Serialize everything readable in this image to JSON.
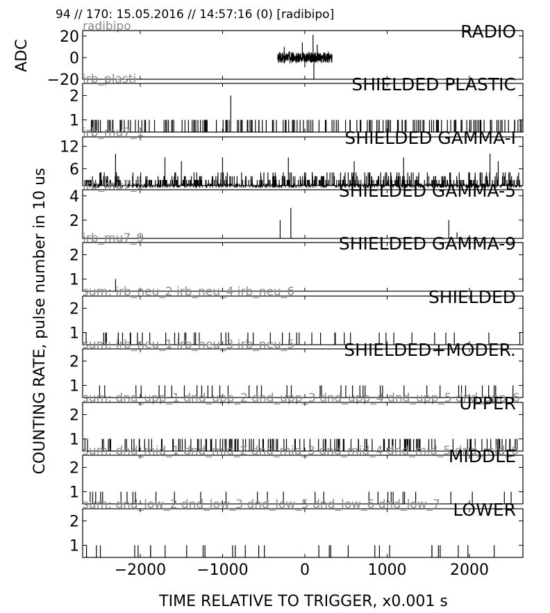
{
  "header": "94 // 170:   15.05.2016 // 14:57:16 (0)  [radibipo]",
  "ylabel_adc": "ADC",
  "ylabel_rate": "COUNTING RATE,   pulse number in 10 us",
  "xlabel": "TIME RELATIVE TO TRIGGER,   x0.001 s",
  "chart_data": {
    "type": "line",
    "x_range": [
      -2700,
      2650
    ],
    "x_ticks": [
      -2000,
      -1000,
      0,
      1000,
      2000
    ],
    "x_tick_labels": [
      "−2000",
      "−1000",
      "0",
      "1000",
      "2000"
    ],
    "panels": [
      {
        "title": "RADIO",
        "channel_label": "radibipo",
        "kind": "waveform",
        "ylim": [
          -20,
          25
        ],
        "y_ticks": [
          -20,
          0,
          20
        ],
        "y_tick_labels": [
          "−20",
          "0",
          "20"
        ],
        "waveform": {
          "x_start": -330,
          "x_end": 330,
          "amplitude": 6,
          "spikes": [
            [
              -250,
              10
            ],
            [
              -30,
              14
            ],
            [
              0,
              -9
            ],
            [
              100,
              21
            ],
            [
              110,
              -20
            ],
            [
              150,
              12
            ]
          ]
        }
      },
      {
        "title": "SHIELDED PLASTIC",
        "channel_label": "irb_plasti",
        "kind": "pulses",
        "ylim": [
          0.5,
          2.5
        ],
        "y_ticks": [
          1,
          2
        ],
        "y_tick_labels": [
          "1",
          "2"
        ],
        "count": 170,
        "seed": 11,
        "max": 1,
        "value_weights": [
          1
        ],
        "spikes": [
          [
            -900,
            2
          ]
        ]
      },
      {
        "title": "SHIELDED GAMMA-I",
        "channel_label": "irb_mu7_1",
        "kind": "pulses",
        "ylim": [
          1.5,
          14.5
        ],
        "y_ticks": [
          6,
          12
        ],
        "y_tick_labels": [
          "6",
          "12"
        ],
        "count": 950,
        "seed": 23,
        "max": 6,
        "value_weights": [
          0.3,
          0.3,
          0.2,
          0.12,
          0.08
        ],
        "spikes": [
          [
            -2300,
            10
          ],
          [
            -1700,
            9
          ],
          [
            -1500,
            8
          ],
          [
            -1000,
            9
          ],
          [
            -200,
            9
          ],
          [
            600,
            8
          ],
          [
            1200,
            9
          ],
          [
            2250,
            10
          ],
          [
            2350,
            8
          ]
        ]
      },
      {
        "title": "SHIELDED GAMMA-5",
        "channel_label": "irb_mu7_5",
        "kind": "pulses",
        "ylim": [
          0.5,
          4.5
        ],
        "y_ticks": [
          2,
          4
        ],
        "y_tick_labels": [
          "2",
          "4"
        ],
        "count": 0,
        "seed": 31,
        "max": 1,
        "value_weights": [
          1
        ],
        "spikes": [
          [
            -300,
            2
          ],
          [
            -170,
            3
          ],
          [
            1750,
            2
          ],
          [
            1850,
            1
          ]
        ]
      },
      {
        "title": "SHIELDED GAMMA-9",
        "channel_label": "irb_mu7_9",
        "kind": "pulses",
        "ylim": [
          0.5,
          2.5
        ],
        "y_ticks": [
          1,
          2
        ],
        "y_tick_labels": [
          "1",
          "2"
        ],
        "count": 0,
        "seed": 41,
        "max": 1,
        "value_weights": [
          1
        ],
        "spikes": [
          [
            -2300,
            1
          ]
        ]
      },
      {
        "title": "SHIELDED",
        "channel_label": "sum: irb_neu_2 irb_neu_4 irb_neu_6",
        "kind": "pulses",
        "ylim": [
          0.5,
          2.5
        ],
        "y_ticks": [
          1,
          2
        ],
        "y_tick_labels": [
          "1",
          "2"
        ],
        "count": 45,
        "seed": 53,
        "max": 1,
        "value_weights": [
          1
        ],
        "spikes": []
      },
      {
        "title": "SHIELDED+MODER.",
        "channel_label": "sum: irb_neu_1 irb_neu_3 irb_neu_5",
        "kind": "pulses",
        "ylim": [
          0.5,
          2.5
        ],
        "y_ticks": [
          1,
          2
        ],
        "y_tick_labels": [
          "1",
          "2"
        ],
        "count": 40,
        "seed": 61,
        "max": 1,
        "value_weights": [
          1
        ],
        "spikes": []
      },
      {
        "title": "UPPER",
        "channel_label": "sum: dnd_upp_1 dnd_upp_2 dnd_upp_3 dnd_upp_4 dnd_upp_5 dnd_upp_6",
        "kind": "pulses",
        "ylim": [
          0.5,
          2.5
        ],
        "y_ticks": [
          1,
          2
        ],
        "y_tick_labels": [
          "1",
          "2"
        ],
        "count": 140,
        "seed": 71,
        "max": 1,
        "value_weights": [
          1
        ],
        "spikes": []
      },
      {
        "title": "MIDDLE",
        "channel_label": "sum: dnd_mid_1 dnd_mid_2 dnd_mid_3 dnd_mid_4 dnd_mid_5 dnd_mid_6",
        "kind": "pulses",
        "ylim": [
          0.5,
          2.5
        ],
        "y_ticks": [
          1,
          2
        ],
        "y_tick_labels": [
          "1",
          "2"
        ],
        "count": 30,
        "seed": 83,
        "max": 1,
        "value_weights": [
          1
        ],
        "spikes": []
      },
      {
        "title": "LOWER",
        "channel_label": "sum: dnd_low_2 dnd_low_3 dnd_low_5 dnd_low_6 dnd_low_7",
        "kind": "pulses",
        "ylim": [
          0.5,
          2.5
        ],
        "y_ticks": [
          1,
          2
        ],
        "y_tick_labels": [
          "1",
          "2"
        ],
        "count": 30,
        "seed": 97,
        "max": 1,
        "value_weights": [
          1
        ],
        "spikes": []
      }
    ]
  }
}
